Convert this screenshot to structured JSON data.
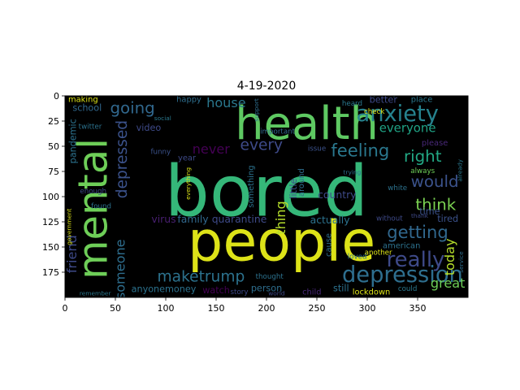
{
  "chart_data": {
    "type": "wordcloud",
    "title": "4-19-2020",
    "xlim": [
      0,
      400
    ],
    "ylim": [
      200,
      0
    ],
    "x_ticks": [
      0,
      50,
      100,
      150,
      200,
      250,
      300,
      350
    ],
    "y_ticks": [
      0,
      25,
      50,
      75,
      100,
      125,
      150,
      175
    ],
    "background": "#000000",
    "words": [
      {
        "text": "bored",
        "x": 200,
        "y": 95,
        "size": 70,
        "rotate": 0,
        "color": "#35b779"
      },
      {
        "text": "people",
        "x": 215,
        "y": 145,
        "size": 55,
        "rotate": 0,
        "color": "#dde318"
      },
      {
        "text": "health",
        "x": 240,
        "y": 28,
        "size": 45,
        "rotate": 0,
        "color": "#5ec962"
      },
      {
        "text": "mental",
        "x": 28,
        "y": 112,
        "size": 40,
        "rotate": -90,
        "color": "#6ece58"
      },
      {
        "text": "anxiety",
        "x": 330,
        "y": 18,
        "size": 22,
        "rotate": 0,
        "color": "#26828e"
      },
      {
        "text": "depression",
        "x": 335,
        "y": 178,
        "size": 22,
        "rotate": 0,
        "color": "#2e6e8e"
      },
      {
        "text": "really",
        "x": 348,
        "y": 163,
        "size": 21,
        "rotate": 0,
        "color": "#3e4a89"
      },
      {
        "text": "getting",
        "x": 350,
        "y": 135,
        "size": 17,
        "rotate": 0,
        "color": "#31688e"
      },
      {
        "text": "feeling",
        "x": 293,
        "y": 54,
        "size": 17,
        "rotate": 0,
        "color": "#2a788e"
      },
      {
        "text": "right",
        "x": 355,
        "y": 60,
        "size": 16,
        "rotate": 0,
        "color": "#22a884"
      },
      {
        "text": "would",
        "x": 367,
        "y": 85,
        "size": 16,
        "rotate": 0,
        "color": "#3b528b"
      },
      {
        "text": "think",
        "x": 368,
        "y": 108,
        "size": 16,
        "rotate": 0,
        "color": "#7ad151"
      },
      {
        "text": "everyone",
        "x": 340,
        "y": 32,
        "size": 12,
        "rotate": 0,
        "color": "#20a486"
      },
      {
        "text": "going",
        "x": 67,
        "y": 12,
        "size": 16,
        "rotate": 0,
        "color": "#31688e"
      },
      {
        "text": "house",
        "x": 160,
        "y": 7,
        "size": 13,
        "rotate": 0,
        "color": "#2a788e"
      },
      {
        "text": "depressed",
        "x": 57,
        "y": 63,
        "size": 15,
        "rotate": -90,
        "color": "#3b528b"
      },
      {
        "text": "never",
        "x": 145,
        "y": 53,
        "size": 13,
        "rotate": 0,
        "color": "#440154"
      },
      {
        "text": "every",
        "x": 195,
        "y": 49,
        "size": 15,
        "rotate": 0,
        "color": "#3e4a89"
      },
      {
        "text": "maketrump",
        "x": 135,
        "y": 180,
        "size": 15,
        "rotate": 0,
        "color": "#2c728e"
      },
      {
        "text": "someone",
        "x": 55,
        "y": 172,
        "size": 13,
        "rotate": -90,
        "color": "#2e6e8e"
      },
      {
        "text": "friend",
        "x": 7,
        "y": 157,
        "size": 13,
        "rotate": -90,
        "color": "#3e4a89"
      },
      {
        "text": "great",
        "x": 380,
        "y": 186,
        "size": 13,
        "rotate": 0,
        "color": "#6ece58"
      },
      {
        "text": "today",
        "x": 382,
        "y": 160,
        "size": 13,
        "rotate": -90,
        "color": "#b5de2b"
      },
      {
        "text": "thing",
        "x": 214,
        "y": 121,
        "size": 13,
        "rotate": -90,
        "color": "#b5de2b"
      },
      {
        "text": "virus",
        "x": 98,
        "y": 122,
        "size": 10,
        "rotate": 0,
        "color": "#481f70"
      },
      {
        "text": "family",
        "x": 127,
        "y": 122,
        "size": 10,
        "rotate": 0,
        "color": "#31688e"
      },
      {
        "text": "quarantine",
        "x": 173,
        "y": 122,
        "size": 10,
        "rotate": 0,
        "color": "#3e4a89"
      },
      {
        "text": "actually",
        "x": 263,
        "y": 123,
        "size": 10,
        "rotate": 0,
        "color": "#2c728e"
      },
      {
        "text": "country",
        "x": 270,
        "y": 98,
        "size": 10,
        "rotate": 0,
        "color": "#3e4a89"
      },
      {
        "text": "video",
        "x": 83,
        "y": 32,
        "size": 9,
        "rotate": 0,
        "color": "#3e4a89"
      },
      {
        "text": "pandemic",
        "x": 8,
        "y": 45,
        "size": 9,
        "rotate": -90,
        "color": "#2c728e"
      },
      {
        "text": "school",
        "x": 22,
        "y": 12,
        "size": 9,
        "rotate": 0,
        "color": "#31688e"
      },
      {
        "text": "making",
        "x": 18,
        "y": 4,
        "size": 8,
        "rotate": 0,
        "color": "#dde318"
      },
      {
        "text": "happy",
        "x": 123,
        "y": 4,
        "size": 8,
        "rotate": 0,
        "color": "#2e6e8e"
      },
      {
        "text": "twitter",
        "x": 25,
        "y": 31,
        "size": 7,
        "rotate": 0,
        "color": "#2c728e"
      },
      {
        "text": "funny",
        "x": 95,
        "y": 56,
        "size": 7,
        "rotate": 0,
        "color": "#3b528b"
      },
      {
        "text": "year",
        "x": 121,
        "y": 62,
        "size": 8,
        "rotate": 0,
        "color": "#3e4a89"
      },
      {
        "text": "something",
        "x": 185,
        "y": 90,
        "size": 8,
        "rotate": -90,
        "color": "#2c728e"
      },
      {
        "text": "little",
        "x": 227,
        "y": 92,
        "size": 9,
        "rotate": -90,
        "color": "#3b528b"
      },
      {
        "text": "around",
        "x": 235,
        "y": 86,
        "size": 8,
        "rotate": -90,
        "color": "#2e6e8e"
      },
      {
        "text": "important",
        "x": 211,
        "y": 36,
        "size": 7,
        "rotate": 0,
        "color": "#31688e"
      },
      {
        "text": "issue",
        "x": 250,
        "y": 53,
        "size": 7,
        "rotate": 0,
        "color": "#3b528b"
      },
      {
        "text": "check",
        "x": 307,
        "y": 16,
        "size": 7,
        "rotate": 0,
        "color": "#dde318"
      },
      {
        "text": "heard",
        "x": 285,
        "y": 8,
        "size": 7,
        "rotate": 0,
        "color": "#2a788e"
      },
      {
        "text": "better",
        "x": 316,
        "y": 4,
        "size": 9,
        "rotate": 0,
        "color": "#3e4a89"
      },
      {
        "text": "place",
        "x": 354,
        "y": 4,
        "size": 8,
        "rotate": 0,
        "color": "#2a788e"
      },
      {
        "text": "please",
        "x": 367,
        "y": 47,
        "size": 8,
        "rotate": 0,
        "color": "#482878"
      },
      {
        "text": "time",
        "x": 362,
        "y": 115,
        "size": 9,
        "rotate": 0,
        "color": "#3b528b"
      },
      {
        "text": "always",
        "x": 355,
        "y": 75,
        "size": 7,
        "rotate": 0,
        "color": "#6ece58"
      },
      {
        "text": "tired",
        "x": 380,
        "y": 122,
        "size": 9,
        "rotate": 0,
        "color": "#3b528b"
      },
      {
        "text": "without",
        "x": 322,
        "y": 122,
        "size": 7,
        "rotate": 0,
        "color": "#3e4a89"
      },
      {
        "text": "american",
        "x": 334,
        "y": 149,
        "size": 8,
        "rotate": 0,
        "color": "#2c728e"
      },
      {
        "text": "cause",
        "x": 262,
        "y": 148,
        "size": 8,
        "rotate": -90,
        "color": "#2e6e8e"
      },
      {
        "text": "anyonemoney",
        "x": 98,
        "y": 192,
        "size": 9,
        "rotate": 0,
        "color": "#2c728e"
      },
      {
        "text": "watch",
        "x": 150,
        "y": 193,
        "size": 9,
        "rotate": 0,
        "color": "#440154"
      },
      {
        "text": "person",
        "x": 200,
        "y": 191,
        "size": 9,
        "rotate": 0,
        "color": "#2e6e8e"
      },
      {
        "text": "story",
        "x": 173,
        "y": 195,
        "size": 7,
        "rotate": 0,
        "color": "#3e4a89"
      },
      {
        "text": "child",
        "x": 245,
        "y": 195,
        "size": 8,
        "rotate": 0,
        "color": "#482878"
      },
      {
        "text": "still",
        "x": 274,
        "y": 191,
        "size": 9,
        "rotate": 0,
        "color": "#2c728e"
      },
      {
        "text": "lockdown",
        "x": 304,
        "y": 195,
        "size": 8,
        "rotate": 0,
        "color": "#dde318"
      },
      {
        "text": "thought",
        "x": 203,
        "y": 180,
        "size": 7,
        "rotate": 0,
        "color": "#2c728e"
      },
      {
        "text": "world",
        "x": 210,
        "y": 196,
        "size": 6,
        "rotate": 0,
        "color": "#3e4a89"
      },
      {
        "text": "remember",
        "x": 30,
        "y": 196,
        "size": 6,
        "rotate": 0,
        "color": "#2a788e"
      },
      {
        "text": "enough",
        "x": 28,
        "y": 95,
        "size": 7,
        "rotate": 0,
        "color": "#3e4a89"
      },
      {
        "text": "found",
        "x": 36,
        "y": 110,
        "size": 7,
        "rotate": 0,
        "color": "#2c728e"
      },
      {
        "text": "government",
        "x": 4,
        "y": 130,
        "size": 6,
        "rotate": -90,
        "color": "#dde318"
      },
      {
        "text": "loved",
        "x": 290,
        "y": 160,
        "size": 7,
        "rotate": 0,
        "color": "#2c728e"
      },
      {
        "text": "another",
        "x": 311,
        "y": 156,
        "size": 7,
        "rotate": 0,
        "color": "#dde318"
      },
      {
        "text": "white",
        "x": 330,
        "y": 92,
        "size": 7,
        "rotate": 0,
        "color": "#2c728e"
      },
      {
        "text": "thank",
        "x": 352,
        "y": 119,
        "size": 6,
        "rotate": 0,
        "color": "#3e4a89"
      },
      {
        "text": "could",
        "x": 340,
        "y": 192,
        "size": 7,
        "rotate": 0,
        "color": "#2a788e"
      },
      {
        "text": "service",
        "x": 393,
        "y": 165,
        "size": 6,
        "rotate": -90,
        "color": "#2e6e8e"
      },
      {
        "text": "social",
        "x": 97,
        "y": 22,
        "size": 6,
        "rotate": 0,
        "color": "#2a788e"
      },
      {
        "text": "everything",
        "x": 122,
        "y": 87,
        "size": 6,
        "rotate": -90,
        "color": "#dde318"
      },
      {
        "text": "trying",
        "x": 285,
        "y": 76,
        "size": 6,
        "rotate": 0,
        "color": "#2e6e8e"
      },
      {
        "text": "support",
        "x": 190,
        "y": 14,
        "size": 6,
        "rotate": -90,
        "color": "#2e6e8e"
      },
      {
        "text": "especially",
        "x": 314,
        "y": -2,
        "size": 6,
        "rotate": 0,
        "color": "#2c728e"
      },
      {
        "text": "already",
        "x": 392,
        "y": 74,
        "size": 6,
        "rotate": -90,
        "color": "#2a788e"
      }
    ]
  },
  "colors": {
    "frame": "#000000",
    "axis_text": "#000000"
  }
}
